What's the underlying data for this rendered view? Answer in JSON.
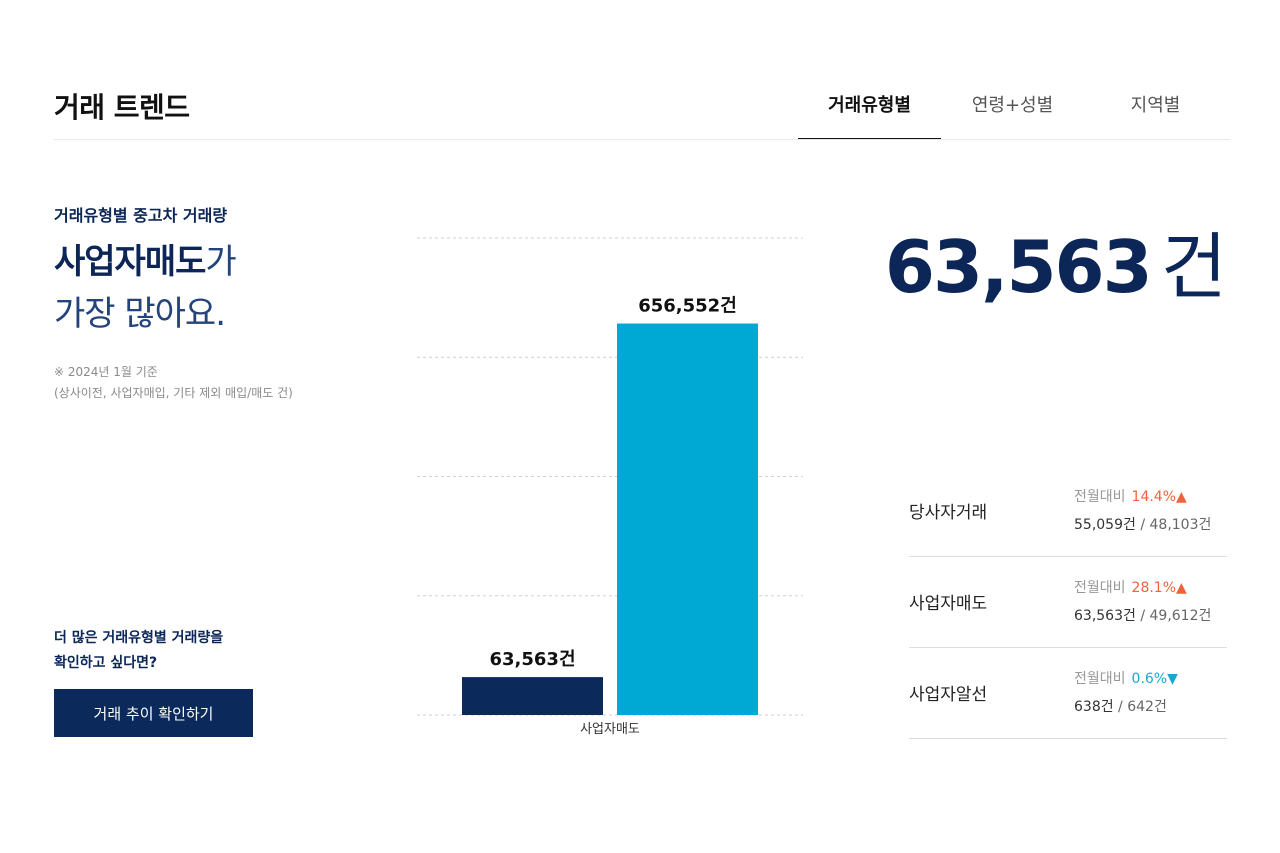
{
  "header": {
    "title": "거래 트렌드",
    "tabs": [
      {
        "label": "거래유형별",
        "active": true
      },
      {
        "label": "연령+성별",
        "active": false
      },
      {
        "label": "지역별",
        "active": false
      }
    ]
  },
  "left": {
    "subtitle": "거래유형별 중고차 거래량",
    "headline_bold": "사업자매도",
    "headline_suffix": "가",
    "headline_line2": "가장 많아요.",
    "note_line1": "※ 2024년 1월 기준",
    "note_line2": "(상사이전, 사업자매입, 기타 제외 매입/매도 건)",
    "cta_line1": "더 많은 거래유형별 거래량을",
    "cta_line2": "확인하고 싶다면?",
    "cta_button": "거래 추이 확인하기"
  },
  "chart_data": {
    "type": "bar",
    "categories": [
      "사업자매도"
    ],
    "series": [
      {
        "values": [
          63563
        ],
        "color": "#0b2a5b"
      },
      {
        "values": [
          656552
        ],
        "color": "#00a8d4"
      }
    ],
    "data_labels": [
      "63,563건",
      "656,552건"
    ],
    "ylim": [
      0,
      800000
    ],
    "grid": true
  },
  "summary": {
    "number": "63,563",
    "unit": "건"
  },
  "stats": [
    {
      "name": "당사자거래",
      "mom_label": "전월대비",
      "rate": "14.4%▲",
      "direction": "up",
      "current": "55,059건",
      "separator": " / ",
      "previous": "48,103건"
    },
    {
      "name": "사업자매도",
      "mom_label": "전월대비",
      "rate": "28.1%▲",
      "direction": "up",
      "current": "63,563건",
      "separator": " / ",
      "previous": "49,612건"
    },
    {
      "name": "사업자알선",
      "mom_label": "전월대비",
      "rate": "0.6%▼",
      "direction": "down",
      "current": "638건",
      "separator": " / ",
      "previous": "642건"
    }
  ]
}
